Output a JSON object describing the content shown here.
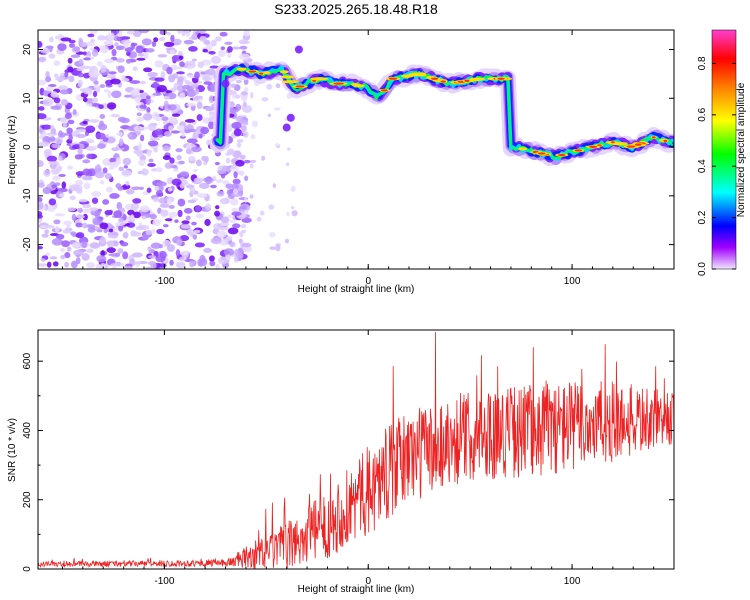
{
  "title": "S233.2025.265.18.48.R18",
  "chart_data": [
    {
      "type": "heatmap",
      "name": "spectrogram",
      "xlabel": "Height of straight line (km)",
      "ylabel": "Frequency (Hz)",
      "xlim": [
        -162,
        150
      ],
      "ylim": [
        -25,
        24
      ],
      "xticks": [
        -100,
        0,
        100
      ],
      "yticks": [
        -20,
        -10,
        0,
        10,
        20
      ],
      "colorbar": {
        "label": "Normalized spectral amplitude",
        "range": [
          0,
          0.93
        ],
        "ticks": [
          0.0,
          0.2,
          0.4,
          0.6,
          0.8
        ],
        "colors": [
          "#ff3fd0",
          "#ff0000",
          "#ff8800",
          "#ffff00",
          "#00ff00",
          "#00ffff",
          "#0000ff",
          "#a000ff",
          "#e8d0ff"
        ]
      },
      "noise_region": {
        "x": [
          -162,
          -65
        ],
        "y": [
          -25,
          24
        ],
        "amplitude": [
          0.0,
          0.15
        ]
      },
      "ridge": [
        {
          "x": -72,
          "y": 15
        },
        {
          "x": -62,
          "y": 16
        },
        {
          "x": -52,
          "y": 15
        },
        {
          "x": -42,
          "y": 16
        },
        {
          "x": -36,
          "y": 12
        },
        {
          "x": -30,
          "y": 13
        },
        {
          "x": -24,
          "y": 14
        },
        {
          "x": -16,
          "y": 13
        },
        {
          "x": -8,
          "y": 13
        },
        {
          "x": 0,
          "y": 12
        },
        {
          "x": 5,
          "y": 10
        },
        {
          "x": 12,
          "y": 14
        },
        {
          "x": 25,
          "y": 15
        },
        {
          "x": 40,
          "y": 13
        },
        {
          "x": 55,
          "y": 14
        },
        {
          "x": 68,
          "y": 14
        },
        {
          "x": 72,
          "y": 0
        },
        {
          "x": 82,
          "y": -1
        },
        {
          "x": 92,
          "y": -2
        },
        {
          "x": 100,
          "y": -1
        },
        {
          "x": 110,
          "y": 0
        },
        {
          "x": 120,
          "y": 1
        },
        {
          "x": 130,
          "y": 0
        },
        {
          "x": 140,
          "y": 2
        },
        {
          "x": 148,
          "y": 1
        }
      ]
    },
    {
      "type": "line",
      "name": "snr",
      "xlabel": "Height of straight line (km)",
      "ylabel": "SNR (10 * v/v)",
      "xlim": [
        -162,
        150
      ],
      "ylim": [
        0,
        690
      ],
      "xticks": [
        -100,
        0,
        100
      ],
      "yticks": [
        0,
        200,
        400,
        600
      ],
      "color": "#ee2222",
      "envelope": [
        {
          "x": -162,
          "base": 12,
          "amp": 15
        },
        {
          "x": -70,
          "base": 15,
          "amp": 20
        },
        {
          "x": -55,
          "base": 30,
          "amp": 90
        },
        {
          "x": -40,
          "base": 50,
          "amp": 140
        },
        {
          "x": -20,
          "base": 110,
          "amp": 200
        },
        {
          "x": 0,
          "base": 200,
          "amp": 260
        },
        {
          "x": 20,
          "base": 300,
          "amp": 280
        },
        {
          "x": 50,
          "base": 360,
          "amp": 260
        },
        {
          "x": 90,
          "base": 380,
          "amp": 280
        },
        {
          "x": 120,
          "base": 400,
          "amp": 240
        },
        {
          "x": 150,
          "base": 420,
          "amp": 150
        }
      ]
    }
  ]
}
